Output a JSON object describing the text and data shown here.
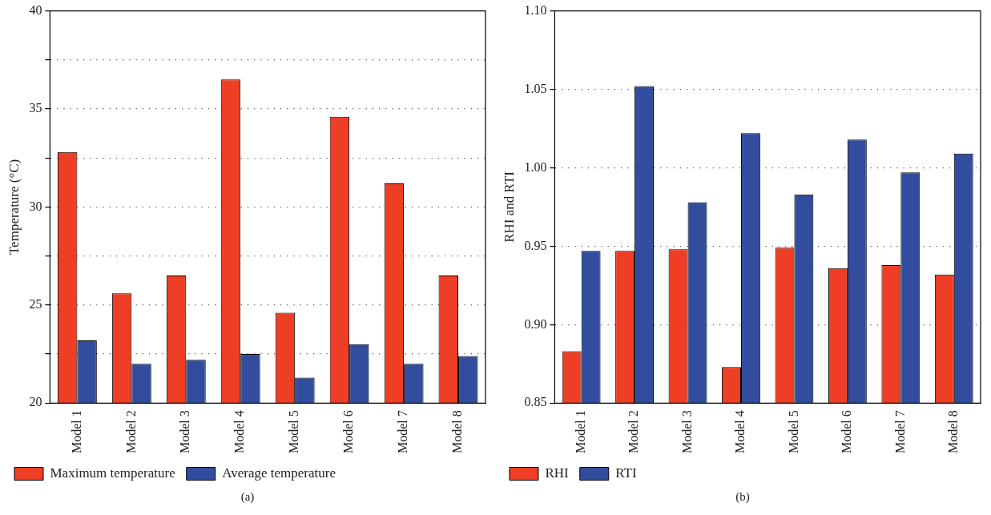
{
  "chart_data": [
    {
      "type": "bar",
      "categories": [
        "Model 1",
        "Model 2",
        "Model 3",
        "Model 4",
        "Model 5",
        "Model 6",
        "Model 7",
        "Model 8"
      ],
      "series": [
        {
          "name": "Maximum temperature",
          "color": "#ee3e26",
          "values": [
            32.8,
            25.6,
            26.5,
            36.5,
            24.6,
            34.6,
            31.2,
            26.5
          ]
        },
        {
          "name": "Average temperature",
          "color": "#324d9e",
          "values": [
            23.2,
            22.0,
            22.2,
            22.5,
            21.3,
            23.0,
            22.0,
            22.4
          ]
        }
      ],
      "ylabel": "Temperature (°C)",
      "ylim": [
        20,
        40
      ],
      "yticks": [
        20,
        {
          "value": 22.5,
          "label": null
        },
        25,
        {
          "value": 27.5,
          "label": null
        },
        30,
        {
          "value": 32.5,
          "label": null
        },
        35,
        {
          "value": 37.5,
          "label": null
        },
        40
      ],
      "grid": "y",
      "legend": "bottom left",
      "annotations": [
        "(a)"
      ]
    },
    {
      "type": "bar",
      "categories": [
        "Model 1",
        "Model 2",
        "Model 3",
        "Model 4",
        "Model 5",
        "Model 6",
        "Model 7",
        "Model 8"
      ],
      "series": [
        {
          "name": "RHI",
          "color": "#ee3e26",
          "values": [
            0.883,
            0.947,
            0.948,
            0.873,
            0.949,
            0.936,
            0.938,
            0.932
          ]
        },
        {
          "name": "RTI",
          "color": "#324d9e",
          "values": [
            0.947,
            1.052,
            0.978,
            1.022,
            0.983,
            1.018,
            0.997,
            1.009
          ]
        }
      ],
      "ylabel": "RHI and RTI",
      "ylim": [
        0.85,
        1.1
      ],
      "yticks": [
        {
          "value": 0.85,
          "label": "0.85"
        },
        {
          "value": 0.9,
          "label": "0.90"
        },
        {
          "value": 0.95,
          "label": "0.95"
        },
        {
          "value": 1.0,
          "label": "1.00"
        },
        {
          "value": 1.05,
          "label": "1.05"
        },
        {
          "value": 1.1,
          "label": "1.10"
        }
      ],
      "grid": "y",
      "legend": "bottom left",
      "annotations": [
        "(b)"
      ]
    }
  ]
}
